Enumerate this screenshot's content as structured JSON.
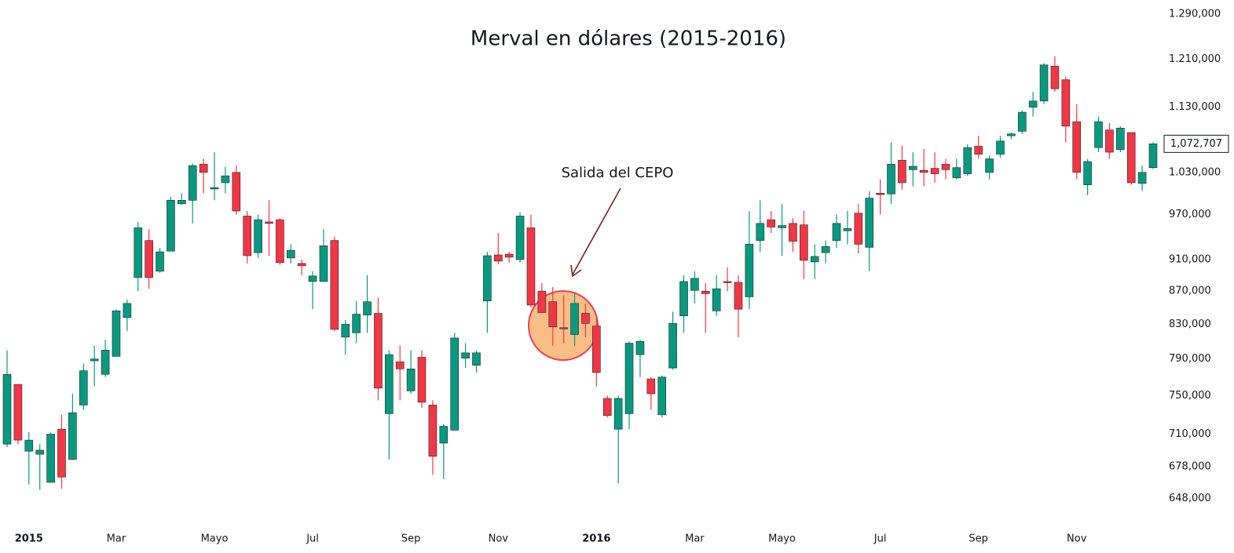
{
  "chart_data": {
    "type": "candlestick",
    "title": "Merval en dólares (2015-2016)",
    "annotation": "Salida del CEPO",
    "y_scale": "log",
    "grid": false,
    "up_color": "#089981",
    "down_color": "#f23645",
    "ylim": [
      627000,
      1316000
    ],
    "yticks": [
      {
        "value": 1290000,
        "label": "1.290,000"
      },
      {
        "value": 1210000,
        "label": "1.210,000"
      },
      {
        "value": 1130000,
        "label": "1.130,000"
      },
      {
        "value": 1030000,
        "label": "1.030,000"
      },
      {
        "value": 970000,
        "label": "970,000"
      },
      {
        "value": 910000,
        "label": "910,000"
      },
      {
        "value": 870000,
        "label": "870,000"
      },
      {
        "value": 830000,
        "label": "830,000"
      },
      {
        "value": 790000,
        "label": "790,000"
      },
      {
        "value": 750000,
        "label": "750,000"
      },
      {
        "value": 710000,
        "label": "710,000"
      },
      {
        "value": 678000,
        "label": "678,000"
      },
      {
        "value": 648000,
        "label": "648,000"
      }
    ],
    "price_marker": {
      "value": 1072707,
      "label": "1,072,707"
    },
    "categories": [
      null,
      null,
      "2015",
      null,
      null,
      null,
      null,
      null,
      null,
      null,
      "Mar",
      null,
      null,
      null,
      null,
      null,
      null,
      null,
      null,
      "Mayo",
      null,
      null,
      null,
      null,
      null,
      null,
      null,
      null,
      "Jul",
      null,
      null,
      null,
      null,
      null,
      null,
      null,
      null,
      "Sep",
      null,
      null,
      null,
      null,
      null,
      null,
      null,
      "Nov",
      null,
      null,
      null,
      null,
      null,
      null,
      null,
      null,
      "2016",
      null,
      null,
      null,
      null,
      null,
      null,
      null,
      null,
      "Mar",
      null,
      null,
      null,
      null,
      null,
      null,
      null,
      "Mayo",
      null,
      null,
      null,
      null,
      null,
      null,
      null,
      null,
      "Jul",
      null,
      null,
      null,
      null,
      null,
      null,
      null,
      null,
      "Sep",
      null,
      null,
      null,
      null,
      null,
      null,
      null,
      null,
      "Nov",
      null,
      null,
      null,
      null,
      null,
      null,
      null
    ],
    "open": [
      700000,
      762000,
      693000,
      690000,
      663000,
      715000,
      685000,
      740000,
      788000,
      773000,
      793000,
      838000,
      887000,
      935000,
      895000,
      921000,
      985000,
      990000,
      1042000,
      1006000,
      1015000,
      1030000,
      968000,
      919000,
      960000,
      963000,
      912000,
      905000,
      882000,
      882000,
      935000,
      815000,
      820000,
      841000,
      843000,
      731000,
      787000,
      755000,
      792000,
      740000,
      701000,
      714000,
      791000,
      783000,
      858000,
      916000,
      917000,
      910000,
      952000,
      870000,
      857000,
      826000,
      818000,
      843000,
      828000,
      747000,
      715000,
      731000,
      795000,
      768000,
      730000,
      780000,
      840000,
      871000,
      870000,
      846000,
      882000,
      881000,
      863000,
      935000,
      963000,
      952000,
      958000,
      956000,
      907000,
      919000,
      935000,
      948000,
      972000,
      926000,
      1000000,
      999000,
      1048000,
      1034000,
      1033000,
      1036000,
      1042000,
      1022000,
      1028000,
      1069000,
      1030000,
      1057000,
      1085000,
      1092000,
      1130000,
      1140000,
      1198000,
      1175000,
      1107000,
      1012000,
      1067000,
      1094000,
      1064000,
      1090000,
      1014000,
      1037000
    ],
    "high": [
      800000,
      762000,
      712000,
      700000,
      712000,
      730000,
      752000,
      785000,
      805000,
      812000,
      848000,
      860000,
      960000,
      950000,
      925000,
      995000,
      1000000,
      1043000,
      1050000,
      1060000,
      1038000,
      1040000,
      975000,
      970000,
      990000,
      965000,
      930000,
      910000,
      895000,
      950000,
      940000,
      835000,
      858000,
      890000,
      862000,
      800000,
      805000,
      800000,
      800000,
      745000,
      720000,
      820000,
      808000,
      800000,
      920000,
      945000,
      920000,
      973000,
      970000,
      880000,
      875000,
      865000,
      867000,
      855000,
      840000,
      750000,
      750000,
      810000,
      812000,
      770000,
      772000,
      845000,
      890000,
      895000,
      880000,
      890000,
      900000,
      890000,
      975000,
      990000,
      975000,
      985000,
      965000,
      975000,
      930000,
      935000,
      970000,
      975000,
      985000,
      1003000,
      1020000,
      1075000,
      1070000,
      1060000,
      1065000,
      1060000,
      1050000,
      1050000,
      1072000,
      1085000,
      1055000,
      1085000,
      1090000,
      1125000,
      1155000,
      1203000,
      1215000,
      1180000,
      1135000,
      1050000,
      1115000,
      1105000,
      1100000,
      1090000,
      1040000,
      1075000
    ],
    "low": [
      697000,
      700000,
      661000,
      656000,
      663000,
      657000,
      685000,
      735000,
      760000,
      770000,
      793000,
      822000,
      870000,
      873000,
      893000,
      921000,
      984000,
      958000,
      1000000,
      990000,
      1000000,
      970000,
      905000,
      912000,
      915000,
      903000,
      905000,
      890000,
      848000,
      882000,
      822000,
      795000,
      808000,
      820000,
      745000,
      685000,
      745000,
      752000,
      737000,
      670000,
      666000,
      714000,
      780000,
      775000,
      820000,
      904000,
      906000,
      906000,
      850000,
      844000,
      805000,
      808000,
      805000,
      815000,
      760000,
      727000,
      662000,
      715000,
      770000,
      735000,
      727000,
      778000,
      820000,
      855000,
      820000,
      840000,
      870000,
      815000,
      848000,
      920000,
      945000,
      915000,
      920000,
      885000,
      885000,
      905000,
      925000,
      930000,
      918000,
      895000,
      970000,
      985000,
      1005000,
      1010000,
      1010000,
      1015000,
      1020000,
      1020000,
      1025000,
      1050000,
      1020000,
      1052000,
      1080000,
      1088000,
      1115000,
      1135000,
      1155000,
      1075000,
      1020000,
      997000,
      1060000,
      1050000,
      1060000,
      1012000,
      1003000,
      1035000
    ],
    "close": [
      773000,
      704000,
      704000,
      694000,
      710000,
      668000,
      732000,
      777000,
      790000,
      800000,
      846000,
      855000,
      952000,
      887000,
      920000,
      990000,
      990000,
      1040000,
      1030000,
      1008000,
      1025000,
      975000,
      915000,
      963000,
      958000,
      906000,
      922000,
      902000,
      889000,
      928000,
      824000,
      830000,
      842000,
      857000,
      758000,
      795000,
      779000,
      779000,
      743000,
      688000,
      718000,
      814000,
      797000,
      797000,
      915000,
      908000,
      913000,
      968000,
      853000,
      844000,
      827000,
      825000,
      855000,
      831000,
      775000,
      729000,
      747000,
      808000,
      810000,
      752000,
      770000,
      831000,
      882000,
      886000,
      867000,
      873000,
      881000,
      848000,
      930000,
      958000,
      953000,
      955000,
      934000,
      909000,
      914000,
      927000,
      958000,
      951000,
      930000,
      993000,
      998000,
      1042000,
      1015000,
      1039000,
      1030000,
      1028000,
      1034000,
      1037000,
      1067000,
      1057000,
      1050000,
      1077000,
      1088000,
      1122000,
      1140000,
      1200000,
      1160000,
      1100000,
      1030000,
      1046000,
      1107000,
      1060000,
      1097000,
      1015000,
      1030000,
      1072707
    ]
  }
}
